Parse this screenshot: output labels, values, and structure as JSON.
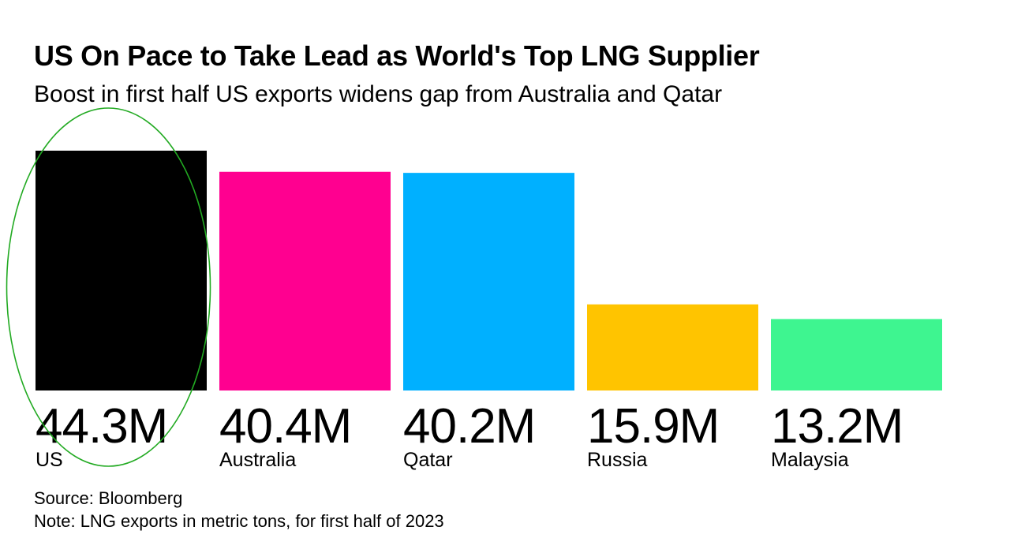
{
  "chart_data": {
    "type": "bar",
    "title": "US On Pace to Take Lead as World's Top LNG Supplier",
    "subtitle": "Boost in first half US exports widens gap from Australia and Qatar",
    "categories": [
      "US",
      "Australia",
      "Qatar",
      "Russia",
      "Malaysia"
    ],
    "values": [
      44.3,
      40.4,
      40.2,
      15.9,
      13.2
    ],
    "value_labels": [
      "44.3M",
      "40.4M",
      "40.2M",
      "15.9M",
      "13.2M"
    ],
    "colors": [
      "#000000",
      "#ff0090",
      "#00b0ff",
      "#ffc400",
      "#3ef590"
    ],
    "unit": "million metric tons",
    "xlabel": "",
    "ylabel": "",
    "ylim": [
      0,
      44.3
    ],
    "grid": false,
    "highlight": "US",
    "highlight_color": "#22aa22"
  },
  "footer": {
    "source": "Source: Bloomberg",
    "note": "Note: LNG exports in metric tons, for first half of 2023"
  }
}
